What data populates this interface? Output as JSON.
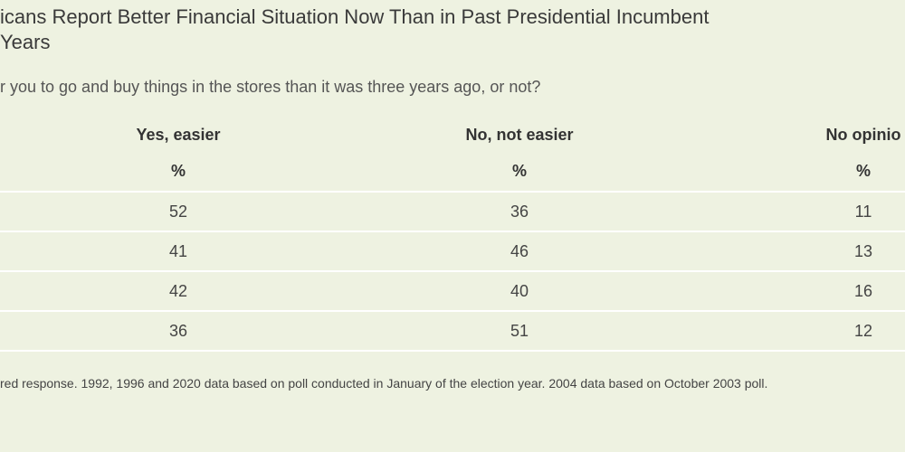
{
  "header": {
    "title_lines": [
      "icans Report Better Financial Situation Now Than in Past Presidential Incumbent",
      "Years"
    ],
    "question": "r you to go and buy things in the stores than it was three years ago, or not?"
  },
  "table": {
    "columns": [
      "Yes, easier",
      "No, not easier",
      "No opinio"
    ],
    "units": [
      "%",
      "%",
      "%"
    ],
    "rows": [
      [
        52,
        36,
        11
      ],
      [
        41,
        46,
        13
      ],
      [
        42,
        40,
        16
      ],
      [
        36,
        51,
        12
      ]
    ]
  },
  "footnote": "red response. 1992, 1996 and 2020 data based on poll conducted in January of the election year. 2004 data based on October 2003 poll."
}
